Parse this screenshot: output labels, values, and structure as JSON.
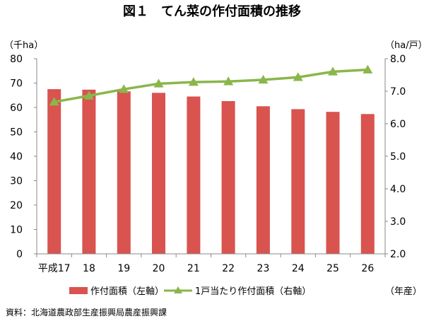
{
  "chart_data": {
    "type": "bar",
    "title": "図１　てん菜の作付面積の推移",
    "left_unit": "（千ha）",
    "right_unit": "（ha/戸）",
    "x_unit": "（年産）",
    "categories": [
      "平成17",
      "18",
      "19",
      "20",
      "21",
      "22",
      "23",
      "24",
      "25",
      "26"
    ],
    "y_left": {
      "min": 0,
      "max": 80,
      "ticks": [
        "0",
        "10",
        "20",
        "30",
        "40",
        "50",
        "60",
        "70",
        "80"
      ]
    },
    "y_right": {
      "min": 2.0,
      "max": 8.0,
      "ticks": [
        "2.0",
        "3.0",
        "4.0",
        "5.0",
        "6.0",
        "7.0",
        "8.0"
      ]
    },
    "grid": false,
    "legend_position": "bottom",
    "series": [
      {
        "name": "作付面積（左軸）",
        "type": "bar",
        "axis": "left",
        "color": "#d9534f",
        "values": [
          67.5,
          67.3,
          66.6,
          66.0,
          64.5,
          62.6,
          60.5,
          59.3,
          58.2,
          57.3
        ]
      },
      {
        "name": "1戸当たり作付面積（右軸）",
        "type": "line",
        "axis": "right",
        "color": "#8ab64a",
        "values": [
          6.67,
          6.86,
          7.06,
          7.23,
          7.28,
          7.3,
          7.35,
          7.43,
          7.6,
          7.66
        ]
      }
    ],
    "source": "資料：北海道農政部生産振興局農産振興課"
  }
}
